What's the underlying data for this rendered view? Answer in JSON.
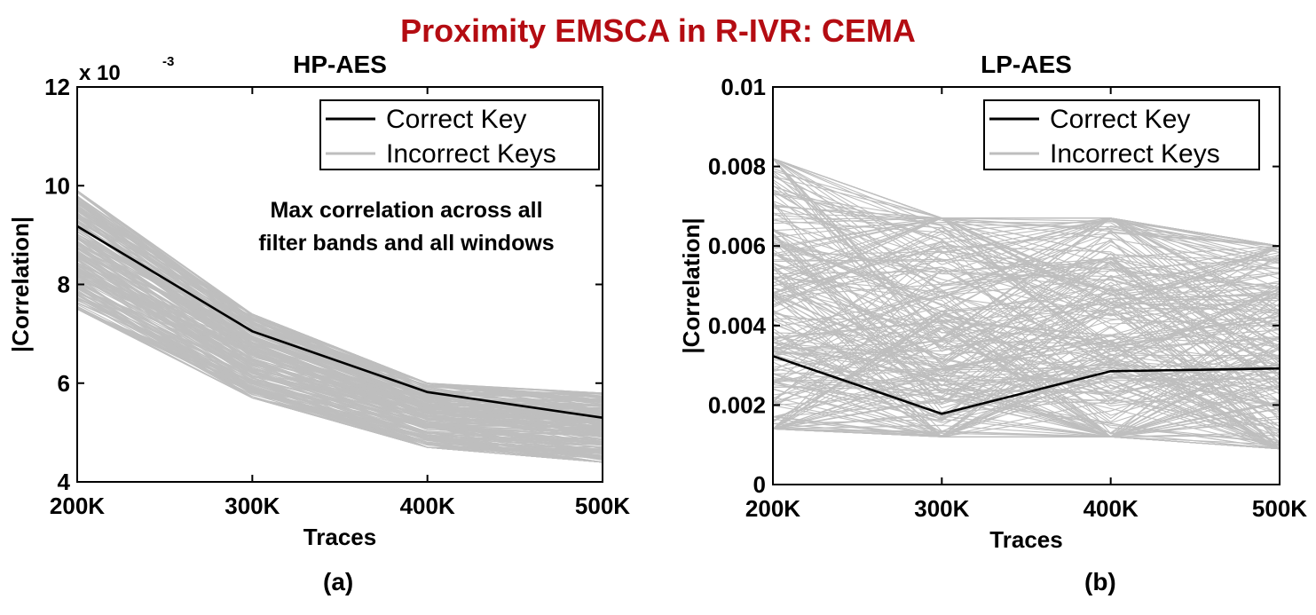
{
  "figure_title": "Proximity EMSCA in R-IVR: CEMA",
  "captions": [
    "(a)",
    "(b)"
  ],
  "colors": {
    "title": "#b40c12",
    "correct_key": "#000000",
    "incorrect_keys": "#bebebe"
  },
  "chart_data": [
    {
      "type": "line",
      "title": "HP-AES",
      "xlabel": "Traces",
      "ylabel": "|Correlation|",
      "x": [
        200000,
        300000,
        400000,
        500000
      ],
      "xtick_labels": [
        "200K",
        "300K",
        "400K",
        "500K"
      ],
      "xlim": [
        200000,
        500000
      ],
      "ylim": [
        0.004,
        0.012
      ],
      "yticks": [
        0.004,
        0.006,
        0.008,
        0.01,
        0.012
      ],
      "ytick_labels": [
        "4",
        "6",
        "8",
        "10",
        "12"
      ],
      "y_multiplier": "x 10",
      "y_multiplier_exp": "-3",
      "annotation": [
        "Max correlation across all",
        "filter bands and all windows"
      ],
      "legend_position": "top-right",
      "legend": [
        "Correct Key",
        "Incorrect Keys"
      ],
      "series": [
        {
          "name": "Correct Key",
          "values": [
            0.00918,
            0.00705,
            0.00582,
            0.0053
          ]
        },
        {
          "name": "Incorrect Keys",
          "count": 255,
          "ranges": [
            [
              0.0075,
              0.0099
            ],
            [
              0.0057,
              0.0074
            ],
            [
              0.0047,
              0.006
            ],
            [
              0.0044,
              0.0058
            ]
          ]
        }
      ]
    },
    {
      "type": "line",
      "title": "LP-AES",
      "xlabel": "Traces",
      "ylabel": "|Correlation|",
      "x": [
        200000,
        300000,
        400000,
        500000
      ],
      "xtick_labels": [
        "200K",
        "300K",
        "400K",
        "500K"
      ],
      "xlim": [
        200000,
        500000
      ],
      "ylim": [
        0,
        0.01
      ],
      "yticks": [
        0,
        0.002,
        0.004,
        0.006,
        0.008,
        0.01
      ],
      "ytick_labels": [
        "0",
        "0.002",
        "0.004",
        "0.006",
        "0.008",
        "0.01"
      ],
      "legend_position": "top-right",
      "legend": [
        "Correct Key",
        "Incorrect Keys"
      ],
      "series": [
        {
          "name": "Correct Key",
          "values": [
            0.00323,
            0.00178,
            0.00285,
            0.00292
          ]
        },
        {
          "name": "Incorrect Keys",
          "count": 255,
          "ranges": [
            [
              0.0014,
              0.0082
            ],
            [
              0.0012,
              0.0067
            ],
            [
              0.0012,
              0.0067
            ],
            [
              0.0009,
              0.006
            ]
          ]
        }
      ]
    }
  ]
}
